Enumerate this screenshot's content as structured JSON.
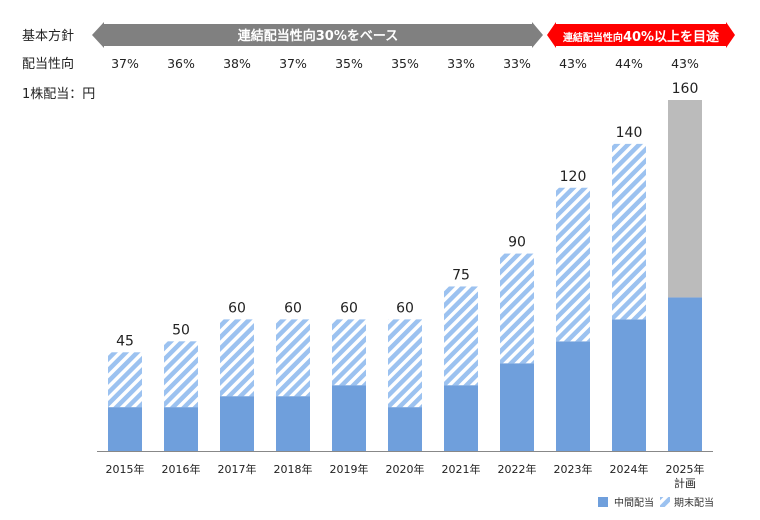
{
  "chart_data": {
    "type": "bar",
    "stacked": true,
    "categories": [
      "2015年",
      "2016年",
      "2017年",
      "2018年",
      "2019年",
      "2020年",
      "2021年",
      "2022年",
      "2023年",
      "2024年",
      "2025年"
    ],
    "category_sublabels": [
      "",
      "",
      "",
      "",
      "",
      "",
      "",
      "",
      "",
      "",
      "計画"
    ],
    "unit_label": "1株配当：円",
    "series": [
      {
        "name": "中間配当",
        "values": [
          20,
          20,
          25,
          25,
          30,
          20,
          30,
          40,
          50,
          60,
          70
        ],
        "color": "#6f9fdc",
        "pattern": "solid"
      },
      {
        "name": "期末配当",
        "values": [
          25,
          30,
          35,
          35,
          30,
          40,
          45,
          50,
          70,
          80,
          90
        ],
        "color": "#9cc2f0",
        "pattern": "hatched"
      }
    ],
    "plan_remainder_color": "#bbbbbb",
    "totals": [
      45,
      50,
      60,
      60,
      60,
      60,
      75,
      90,
      120,
      140,
      160
    ],
    "ylim": [
      0,
      160
    ],
    "grid": false,
    "legend_position": "bottom-right",
    "policy_row": {
      "label": "基本方針",
      "segments": [
        {
          "text": "連結配当性向30%をベース",
          "from": 0,
          "to": 7,
          "color": "#808080"
        },
        {
          "text_small": "連結配当性向",
          "text_big": "40%以上を目途",
          "from": 8,
          "to": 10,
          "color": "#ff0000"
        }
      ]
    },
    "payout_row": {
      "label": "配当性向",
      "values": [
        "37%",
        "36%",
        "38%",
        "37%",
        "35%",
        "35%",
        "33%",
        "33%",
        "43%",
        "44%",
        "43%"
      ]
    }
  }
}
